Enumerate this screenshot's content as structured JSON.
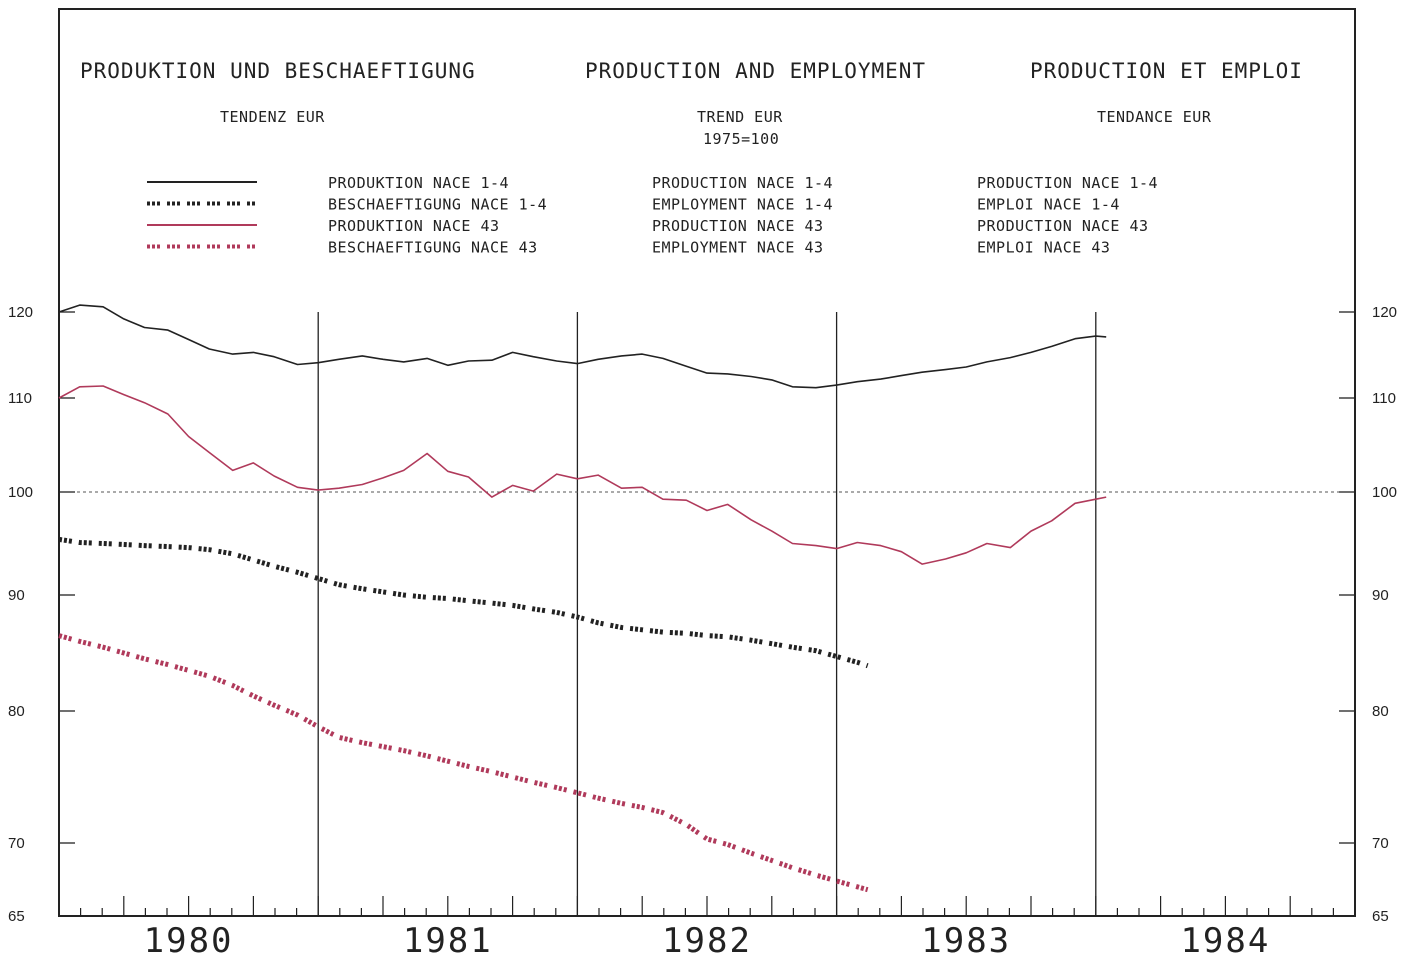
{
  "titles": [
    {
      "main": "PRODUKTION UND BESCHAEFTIGUNG",
      "sub1": "TENDENZ EUR",
      "sub2": ""
    },
    {
      "main": "PRODUCTION AND EMPLOYMENT",
      "sub1": "TREND EUR",
      "sub2": "1975=100"
    },
    {
      "main": "PRODUCTION ET EMPLOI",
      "sub1": "TENDANCE EUR",
      "sub2": ""
    }
  ],
  "legend": [
    {
      "de": "PRODUKTION NACE 1-4",
      "en": "PRODUCTION NACE 1-4",
      "fr": "PRODUCTION NACE 1-4",
      "color": "#222222",
      "style": "solid"
    },
    {
      "de": "BESCHAEFTIGUNG NACE 1-4",
      "en": "EMPLOYMENT NACE 1-4",
      "fr": "EMPLOI NACE 1-4",
      "color": "#222222",
      "style": "dotted"
    },
    {
      "de": "PRODUKTION NACE 43",
      "en": "PRODUCTION NACE 43",
      "fr": "PRODUCTION NACE 43",
      "color": "#b03a5b",
      "style": "solid"
    },
    {
      "de": "BESCHAEFTIGUNG NACE 43",
      "en": "EMPLOYMENT NACE 43",
      "fr": "EMPLOI NACE 43",
      "color": "#b03a5b",
      "style": "dotted"
    }
  ],
  "chart_data": {
    "type": "line",
    "x_unit": "year",
    "xlim": [
      1979.5,
      1984.5
    ],
    "ylim": [
      65,
      122
    ],
    "yticks": [
      65,
      70,
      80,
      90,
      100,
      110,
      120
    ],
    "year_labels": [
      "1980",
      "1981",
      "1982",
      "1983",
      "1984"
    ],
    "reference_line": 100,
    "grid": false,
    "series": [
      {
        "name": "PRODUKTION NACE 1-4",
        "color": "#222222",
        "style": "solid",
        "x": [
          1979.5,
          1979.58,
          1979.67,
          1979.75,
          1979.83,
          1979.92,
          1980.0,
          1980.08,
          1980.17,
          1980.25,
          1980.33,
          1980.42,
          1980.5,
          1980.58,
          1980.67,
          1980.75,
          1980.83,
          1980.92,
          1981.0,
          1981.08,
          1981.17,
          1981.25,
          1981.33,
          1981.42,
          1981.5,
          1981.58,
          1981.67,
          1981.75,
          1981.83,
          1981.92,
          1982.0,
          1982.08,
          1982.17,
          1982.25,
          1982.33,
          1982.42,
          1982.5,
          1982.58,
          1982.67,
          1982.75,
          1982.83,
          1982.92,
          1983.0,
          1983.08,
          1983.17,
          1983.25,
          1983.33,
          1983.42,
          1983.5,
          1983.54
        ],
        "y": [
          120.0,
          120.8,
          120.6,
          119.2,
          118.2,
          117.9,
          116.8,
          115.7,
          115.1,
          115.3,
          114.8,
          113.9,
          114.1,
          114.5,
          114.9,
          114.5,
          114.2,
          114.6,
          113.8,
          114.3,
          114.4,
          115.3,
          114.8,
          114.3,
          114.0,
          114.5,
          114.9,
          115.1,
          114.6,
          113.7,
          112.9,
          112.8,
          112.5,
          112.1,
          111.3,
          111.2,
          111.5,
          111.9,
          112.2,
          112.6,
          113.0,
          113.3,
          113.6,
          114.2,
          114.7,
          115.3,
          116.0,
          116.9,
          117.2,
          117.1
        ]
      },
      {
        "name": "BESCHAEFTIGUNG NACE 1-4",
        "color": "#222222",
        "style": "dotted",
        "x": [
          1979.5,
          1979.58,
          1979.67,
          1979.75,
          1979.83,
          1979.92,
          1980.0,
          1980.08,
          1980.17,
          1980.25,
          1980.33,
          1980.42,
          1980.5,
          1980.58,
          1980.67,
          1980.75,
          1980.83,
          1980.92,
          1981.0,
          1981.08,
          1981.17,
          1981.25,
          1981.33,
          1981.42,
          1981.5,
          1981.58,
          1981.67,
          1981.75,
          1981.83,
          1981.92,
          1982.0,
          1982.08,
          1982.17,
          1982.25,
          1982.33,
          1982.42,
          1982.5,
          1982.58,
          1982.62
        ],
        "y": [
          95.4,
          95.1,
          95.0,
          94.9,
          94.8,
          94.7,
          94.6,
          94.4,
          94.0,
          93.4,
          92.8,
          92.2,
          91.6,
          91.0,
          90.6,
          90.3,
          90.0,
          89.8,
          89.7,
          89.5,
          89.3,
          89.1,
          88.8,
          88.5,
          88.1,
          87.6,
          87.2,
          87.0,
          86.8,
          86.7,
          86.5,
          86.4,
          86.1,
          85.8,
          85.5,
          85.2,
          84.7,
          84.2,
          83.9
        ]
      },
      {
        "name": "PRODUKTION NACE 43",
        "color": "#b03a5b",
        "style": "solid",
        "x": [
          1979.5,
          1979.58,
          1979.67,
          1979.75,
          1979.83,
          1979.92,
          1980.0,
          1980.08,
          1980.17,
          1980.25,
          1980.33,
          1980.42,
          1980.5,
          1980.58,
          1980.67,
          1980.75,
          1980.83,
          1980.92,
          1981.0,
          1981.08,
          1981.17,
          1981.25,
          1981.33,
          1981.42,
          1981.5,
          1981.58,
          1981.67,
          1981.75,
          1981.83,
          1981.92,
          1982.0,
          1982.08,
          1982.17,
          1982.25,
          1982.33,
          1982.42,
          1982.5,
          1982.58,
          1982.67,
          1982.75,
          1982.83,
          1982.92,
          1983.0,
          1983.08,
          1983.17,
          1983.25,
          1983.33,
          1983.42,
          1983.5,
          1983.54
        ],
        "y": [
          110.0,
          111.3,
          111.4,
          110.4,
          109.5,
          108.3,
          105.9,
          104.2,
          102.3,
          103.1,
          101.7,
          100.5,
          100.2,
          100.4,
          100.8,
          101.5,
          102.3,
          104.1,
          102.2,
          101.6,
          99.5,
          100.7,
          100.1,
          101.9,
          101.4,
          101.8,
          100.4,
          100.5,
          99.3,
          99.2,
          98.2,
          98.8,
          97.3,
          96.2,
          95.0,
          94.8,
          94.5,
          95.1,
          94.8,
          94.2,
          93.0,
          93.5,
          94.1,
          95.0,
          94.6,
          96.2,
          97.2,
          98.9,
          99.3,
          99.5
        ]
      },
      {
        "name": "BESCHAEFTIGUNG NACE 43",
        "color": "#b03a5b",
        "style": "dotted",
        "x": [
          1979.5,
          1979.58,
          1979.67,
          1979.75,
          1979.83,
          1979.92,
          1980.0,
          1980.08,
          1980.17,
          1980.25,
          1980.33,
          1980.42,
          1980.5,
          1980.58,
          1980.67,
          1980.75,
          1980.83,
          1980.92,
          1981.0,
          1981.08,
          1981.17,
          1981.25,
          1981.33,
          1981.42,
          1981.5,
          1981.58,
          1981.67,
          1981.75,
          1981.83,
          1981.92,
          1982.0,
          1982.08,
          1982.17,
          1982.25,
          1982.33,
          1982.42,
          1982.5,
          1982.58,
          1982.62
        ],
        "y": [
          86.5,
          86.0,
          85.5,
          85.0,
          84.5,
          84.0,
          83.5,
          83.0,
          82.2,
          81.3,
          80.5,
          79.7,
          78.8,
          78.0,
          77.6,
          77.3,
          77.0,
          76.6,
          76.2,
          75.8,
          75.4,
          75.0,
          74.6,
          74.2,
          73.8,
          73.4,
          73.0,
          72.7,
          72.3,
          71.4,
          70.3,
          69.9,
          69.3,
          68.8,
          68.3,
          67.8,
          67.4,
          67.0,
          66.8
        ]
      }
    ]
  }
}
